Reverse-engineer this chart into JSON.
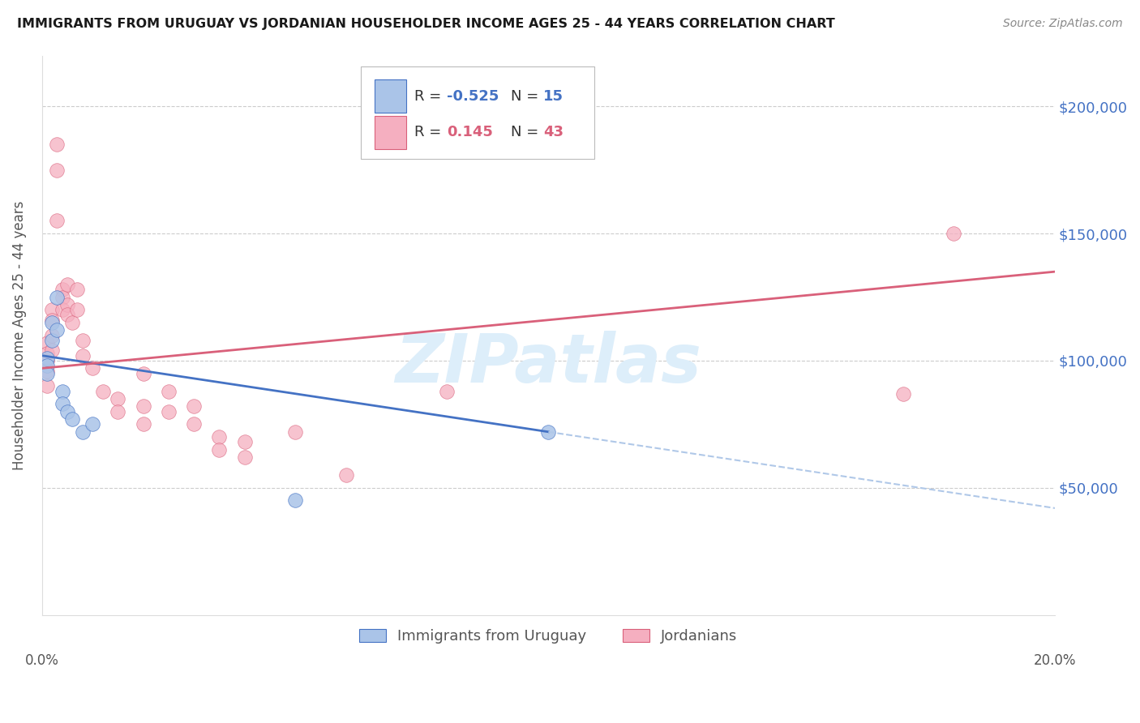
{
  "title": "IMMIGRANTS FROM URUGUAY VS JORDANIAN HOUSEHOLDER INCOME AGES 25 - 44 YEARS CORRELATION CHART",
  "source": "Source: ZipAtlas.com",
  "ylabel": "Householder Income Ages 25 - 44 years",
  "ytick_values": [
    50000,
    100000,
    150000,
    200000
  ],
  "ylim": [
    0,
    220000
  ],
  "xlim": [
    0.0,
    0.2
  ],
  "legend1_color": "#aac4e8",
  "legend2_color": "#f5afc0",
  "line1_color": "#4472c4",
  "line2_color": "#d9607a",
  "dashed_color": "#b0c8e8",
  "watermark": "ZIPatlas",
  "watermark_color": "#ddeefa",
  "background_color": "#ffffff",
  "grid_color": "#cccccc",
  "title_color": "#1a1a1a",
  "right_axis_color": "#4472c4",
  "source_color": "#888888",
  "blue_points": [
    [
      0.001,
      101000
    ],
    [
      0.001,
      98000
    ],
    [
      0.001,
      95000
    ],
    [
      0.002,
      115000
    ],
    [
      0.002,
      108000
    ],
    [
      0.003,
      125000
    ],
    [
      0.003,
      112000
    ],
    [
      0.004,
      88000
    ],
    [
      0.004,
      83000
    ],
    [
      0.005,
      80000
    ],
    [
      0.006,
      77000
    ],
    [
      0.008,
      72000
    ],
    [
      0.01,
      75000
    ],
    [
      0.1,
      72000
    ],
    [
      0.05,
      45000
    ]
  ],
  "pink_points": [
    [
      0.001,
      107000
    ],
    [
      0.001,
      103000
    ],
    [
      0.001,
      100000
    ],
    [
      0.001,
      96000
    ],
    [
      0.001,
      90000
    ],
    [
      0.002,
      120000
    ],
    [
      0.002,
      116000
    ],
    [
      0.002,
      110000
    ],
    [
      0.002,
      104000
    ],
    [
      0.003,
      175000
    ],
    [
      0.003,
      185000
    ],
    [
      0.003,
      155000
    ],
    [
      0.004,
      128000
    ],
    [
      0.004,
      125000
    ],
    [
      0.004,
      120000
    ],
    [
      0.005,
      130000
    ],
    [
      0.005,
      122000
    ],
    [
      0.005,
      118000
    ],
    [
      0.006,
      115000
    ],
    [
      0.007,
      128000
    ],
    [
      0.007,
      120000
    ],
    [
      0.008,
      108000
    ],
    [
      0.008,
      102000
    ],
    [
      0.01,
      97000
    ],
    [
      0.012,
      88000
    ],
    [
      0.015,
      85000
    ],
    [
      0.015,
      80000
    ],
    [
      0.02,
      95000
    ],
    [
      0.02,
      82000
    ],
    [
      0.02,
      75000
    ],
    [
      0.025,
      88000
    ],
    [
      0.025,
      80000
    ],
    [
      0.03,
      82000
    ],
    [
      0.03,
      75000
    ],
    [
      0.035,
      70000
    ],
    [
      0.035,
      65000
    ],
    [
      0.04,
      68000
    ],
    [
      0.04,
      62000
    ],
    [
      0.05,
      72000
    ],
    [
      0.06,
      55000
    ],
    [
      0.08,
      88000
    ],
    [
      0.18,
      150000
    ],
    [
      0.17,
      87000
    ]
  ],
  "blue_R": -0.525,
  "blue_N": 15,
  "pink_R": 0.145,
  "pink_N": 43
}
